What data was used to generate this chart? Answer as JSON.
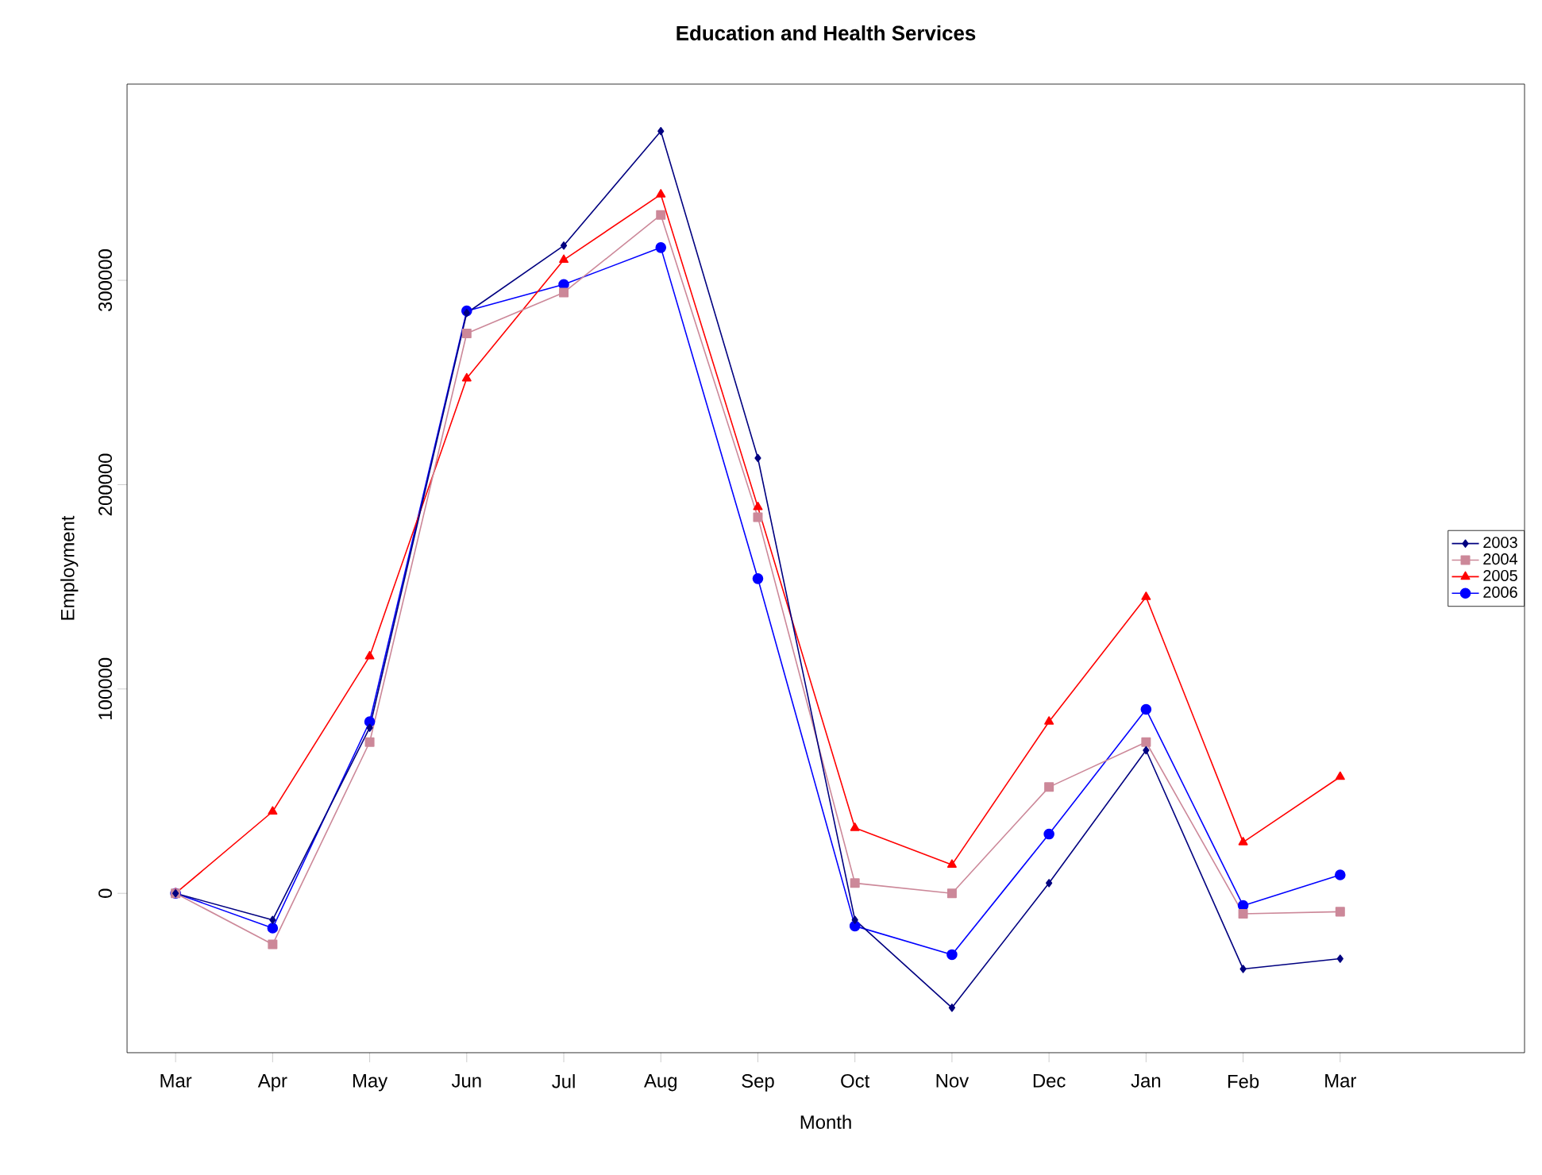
{
  "chart_data": {
    "type": "line",
    "title": "Education and Health Services",
    "xlabel": "Month",
    "ylabel": "Employment",
    "categories": [
      "Mar",
      "Apr",
      "May",
      "Jun",
      "Jul",
      "Aug",
      "Sep",
      "Oct",
      "Nov",
      "Dec",
      "Jan",
      "Feb",
      "Mar"
    ],
    "ylim": [
      -78000,
      396000
    ],
    "yticks": [
      0,
      100000,
      200000,
      300000
    ],
    "legend": "right",
    "grid": false,
    "series": [
      {
        "name": "2003",
        "color": "#000080",
        "marker": "diamond",
        "values": [
          0,
          -13000,
          81000,
          284000,
          317000,
          373000,
          213000,
          -13000,
          -56000,
          5000,
          70000,
          -37000,
          -32000
        ]
      },
      {
        "name": "2004",
        "color": "#cc8899",
        "marker": "square",
        "values": [
          0,
          -25000,
          74000,
          274000,
          294000,
          332000,
          184000,
          5000,
          0,
          52000,
          74000,
          -10000,
          -9000
        ]
      },
      {
        "name": "2005",
        "color": "#ff0000",
        "marker": "triangle",
        "values": [
          0,
          40000,
          116000,
          252000,
          310000,
          342000,
          189000,
          32000,
          14000,
          84000,
          145000,
          25000,
          57000
        ]
      },
      {
        "name": "2006",
        "color": "#0000ff",
        "marker": "circle",
        "values": [
          0,
          -17000,
          84000,
          285000,
          298000,
          316000,
          154000,
          -16000,
          -30000,
          29000,
          90000,
          -6000,
          9000
        ]
      }
    ]
  }
}
